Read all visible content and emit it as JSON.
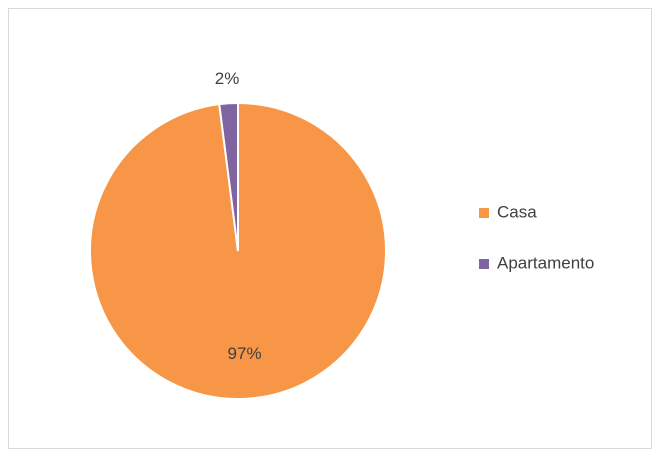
{
  "chart_data": {
    "type": "pie",
    "categories": [
      "Casa",
      "Apartamento"
    ],
    "values": [
      97,
      2
    ],
    "value_labels": [
      "97%",
      "2%"
    ],
    "colors": [
      "#f79646",
      "#8064a2"
    ],
    "legend": "right"
  }
}
